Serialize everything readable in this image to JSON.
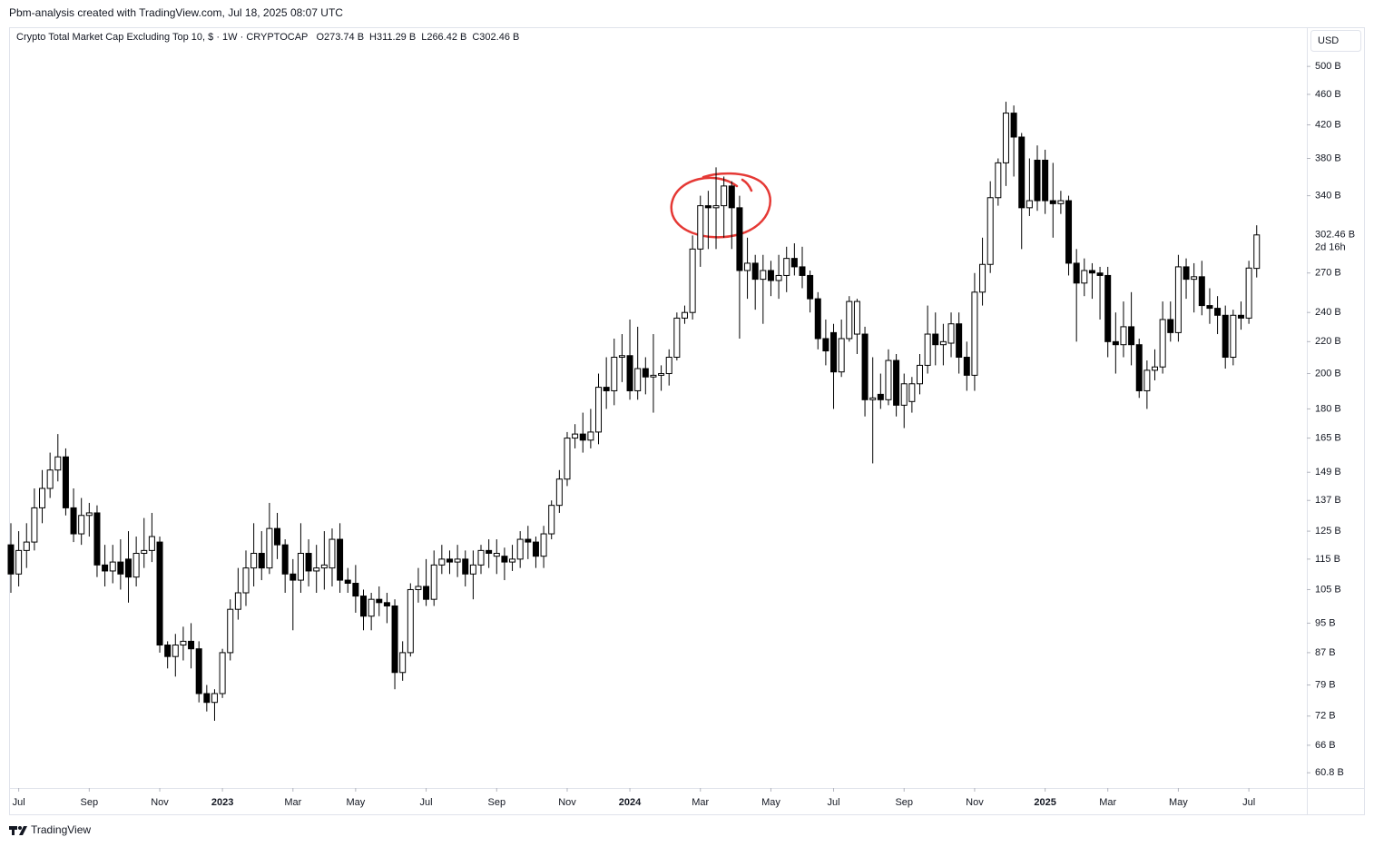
{
  "header": {
    "attribution": "Pbm-analysis created with TradingView.com, Jul 18, 2025 08:07 UTC"
  },
  "footer": {
    "brand": "TradingView"
  },
  "chart_data": {
    "type": "candlestick",
    "title": "Crypto Total Market Cap Excluding Top 10, $ · 1W · CRYPTOCAP",
    "ohlc_legend": [
      "O273.74 B",
      "H311.29 B",
      "L266.42 B",
      "C302.46 B"
    ],
    "currency": "USD",
    "last_price": {
      "value": 302.46,
      "label": "302.46 B"
    },
    "countdown": "2d 16h",
    "up_color": "#ffffff",
    "down_color": "#000000",
    "wick_color": "#000000",
    "log_scale": true,
    "grid": false,
    "ylim": [
      58.1,
      562
    ],
    "yticks": [
      {
        "value": 500,
        "label": "500 B"
      },
      {
        "value": 460,
        "label": "460 B"
      },
      {
        "value": 420,
        "label": "420 B"
      },
      {
        "value": 380,
        "label": "380 B"
      },
      {
        "value": 340,
        "label": "340 B"
      },
      {
        "value": 270,
        "label": "270 B"
      },
      {
        "value": 240,
        "label": "240 B"
      },
      {
        "value": 220,
        "label": "220 B"
      },
      {
        "value": 200,
        "label": "200 B"
      },
      {
        "value": 180,
        "label": "180 B"
      },
      {
        "value": 165,
        "label": "165 B"
      },
      {
        "value": 149,
        "label": "149 B"
      },
      {
        "value": 137,
        "label": "137 B"
      },
      {
        "value": 125,
        "label": "125 B"
      },
      {
        "value": 115,
        "label": "115 B"
      },
      {
        "value": 105,
        "label": "105 B"
      },
      {
        "value": 95,
        "label": "95 B"
      },
      {
        "value": 87,
        "label": "87 B"
      },
      {
        "value": 79,
        "label": "79 B"
      },
      {
        "value": 72,
        "label": "72 B"
      },
      {
        "value": 66,
        "label": "66 B"
      },
      {
        "value": 60.8,
        "label": "60.8 B"
      }
    ],
    "xlim": [
      -0.23,
      165.4
    ],
    "xticks": [
      {
        "value": 1,
        "label": "Jul"
      },
      {
        "value": 10,
        "label": "Sep"
      },
      {
        "value": 19,
        "label": "Nov"
      },
      {
        "value": 27,
        "label": "2023"
      },
      {
        "value": 36,
        "label": "Mar"
      },
      {
        "value": 44,
        "label": "May"
      },
      {
        "value": 53,
        "label": "Jul"
      },
      {
        "value": 62,
        "label": "Sep"
      },
      {
        "value": 71,
        "label": "Nov"
      },
      {
        "value": 79,
        "label": "2024"
      },
      {
        "value": 88,
        "label": "Mar"
      },
      {
        "value": 97,
        "label": "May"
      },
      {
        "value": 105,
        "label": "Jul"
      },
      {
        "value": 114,
        "label": "Sep"
      },
      {
        "value": 123,
        "label": "Nov"
      },
      {
        "value": 132,
        "label": "2025"
      },
      {
        "value": 140,
        "label": "Mar"
      },
      {
        "value": 149,
        "label": "May"
      },
      {
        "value": 158,
        "label": "Jul"
      }
    ],
    "open": [
      120,
      110,
      118,
      121,
      134,
      142,
      150,
      156,
      134,
      124,
      131,
      132,
      113,
      111,
      114,
      115,
      109,
      117,
      118,
      121,
      89,
      86,
      89,
      90,
      88,
      77,
      75,
      77,
      87,
      99,
      104,
      112,
      117,
      112,
      126,
      120,
      110,
      108,
      117,
      111,
      112,
      112,
      122,
      108,
      107,
      103,
      97,
      102,
      101,
      100,
      82,
      87,
      105,
      106,
      102,
      113,
      115,
      114,
      115,
      110,
      113,
      118,
      116,
      116,
      114,
      115,
      122,
      121,
      116,
      124,
      135,
      146,
      165,
      167,
      164,
      168,
      192,
      190,
      210,
      211,
      190,
      203,
      198,
      199,
      200,
      210,
      236,
      240,
      290,
      330,
      328,
      330,
      350,
      328,
      272,
      278,
      265,
      272,
      264,
      268,
      282,
      275,
      268,
      250,
      222,
      226,
      201,
      222,
      225,
      225,
      185,
      188,
      185,
      208,
      182,
      184,
      194,
      205,
      225,
      218,
      219,
      232,
      210,
      199,
      255,
      277,
      338,
      375,
      435,
      405,
      328,
      378,
      378,
      335,
      332,
      335,
      278,
      262,
      272,
      270,
      268,
      220,
      218,
      230,
      218,
      190,
      202,
      204,
      235,
      226,
      275,
      265,
      267,
      245,
      243,
      238,
      210,
      238,
      236,
      273.74
    ],
    "high": [
      128,
      125,
      128,
      142,
      150,
      158,
      167,
      160,
      142,
      138,
      136,
      135,
      120,
      120,
      122,
      125,
      123,
      130,
      132,
      123,
      90,
      92,
      94,
      95,
      90,
      79,
      78,
      88,
      102,
      112,
      118,
      128,
      125,
      136,
      132,
      122,
      115,
      128,
      122,
      120,
      125,
      126,
      128,
      112,
      113,
      105,
      104,
      106,
      104,
      102,
      90,
      107,
      112,
      115,
      118,
      120,
      118,
      120,
      118,
      118,
      120,
      122,
      122,
      119,
      120,
      125,
      127,
      123,
      127,
      137,
      150,
      168,
      172,
      178,
      180,
      200,
      210,
      222,
      225,
      235,
      230,
      210,
      225,
      205,
      215,
      240,
      245,
      302,
      340,
      345,
      370,
      360,
      355,
      340,
      300,
      285,
      285,
      280,
      285,
      292,
      295,
      292,
      272,
      255,
      235,
      232,
      235,
      252,
      250,
      230,
      210,
      200,
      215,
      212,
      200,
      198,
      212,
      245,
      240,
      232,
      240,
      240,
      220,
      270,
      300,
      355,
      380,
      450,
      445,
      410,
      380,
      395,
      390,
      375,
      345,
      340,
      290,
      282,
      278,
      275,
      275,
      240,
      248,
      255,
      222,
      208,
      215,
      248,
      248,
      285,
      282,
      278,
      280,
      258,
      252,
      245,
      242,
      248,
      280,
      311.29
    ],
    "low": [
      104,
      106,
      112,
      118,
      128,
      138,
      145,
      131,
      121,
      120,
      123,
      109,
      106,
      107,
      105,
      101,
      106,
      112,
      114,
      87,
      83,
      81,
      85,
      83,
      75,
      73,
      71,
      76,
      85,
      96,
      100,
      106,
      108,
      110,
      115,
      104,
      93,
      104,
      106,
      104,
      105,
      106,
      104,
      104,
      98,
      93,
      93,
      97,
      95,
      78,
      80,
      86,
      101,
      100,
      100,
      110,
      110,
      109,
      106,
      102,
      110,
      112,
      110,
      108,
      111,
      112,
      115,
      112,
      112,
      122,
      132,
      143,
      160,
      158,
      160,
      162,
      180,
      182,
      195,
      185,
      185,
      188,
      178,
      190,
      193,
      208,
      232,
      235,
      275,
      290,
      290,
      300,
      290,
      222,
      250,
      242,
      232,
      252,
      250,
      255,
      268,
      258,
      240,
      215,
      205,
      180,
      198,
      220,
      212,
      176,
      153,
      180,
      182,
      176,
      170,
      178,
      188,
      200,
      205,
      205,
      210,
      200,
      190,
      190,
      245,
      270,
      330,
      350,
      360,
      290,
      320,
      325,
      322,
      300,
      322,
      268,
      220,
      252,
      250,
      235,
      210,
      200,
      210,
      205,
      186,
      180,
      196,
      200,
      220,
      220,
      250,
      240,
      238,
      232,
      225,
      203,
      205,
      228,
      232,
      266.42
    ],
    "close": [
      110,
      118,
      121,
      134,
      142,
      150,
      156,
      134,
      124,
      131,
      132,
      113,
      111,
      114,
      110,
      109,
      117,
      118,
      123,
      89,
      86,
      89,
      90,
      88,
      77,
      75,
      77,
      87,
      99,
      104,
      112,
      117,
      112,
      126,
      120,
      110,
      108,
      117,
      111,
      112,
      113,
      122,
      108,
      107,
      103,
      97,
      102,
      101,
      100,
      82,
      87,
      105,
      106,
      102,
      113,
      115,
      114,
      115,
      110,
      113,
      118,
      117,
      117,
      114,
      115,
      122,
      121,
      116,
      124,
      135,
      146,
      165,
      167,
      164,
      168,
      192,
      190,
      210,
      211,
      190,
      203,
      198,
      199,
      200,
      210,
      236,
      240,
      290,
      330,
      328,
      330,
      350,
      328,
      272,
      278,
      265,
      272,
      264,
      268,
      282,
      275,
      268,
      250,
      222,
      214,
      201,
      222,
      248,
      248,
      185,
      186,
      185,
      208,
      182,
      194,
      194,
      205,
      225,
      218,
      220,
      232,
      210,
      199,
      255,
      277,
      338,
      375,
      435,
      405,
      328,
      335,
      335,
      335,
      332,
      335,
      278,
      262,
      272,
      270,
      268,
      220,
      218,
      230,
      218,
      190,
      202,
      204,
      235,
      226,
      275,
      265,
      267,
      245,
      243,
      238,
      210,
      238,
      236,
      274,
      302.46
    ]
  }
}
